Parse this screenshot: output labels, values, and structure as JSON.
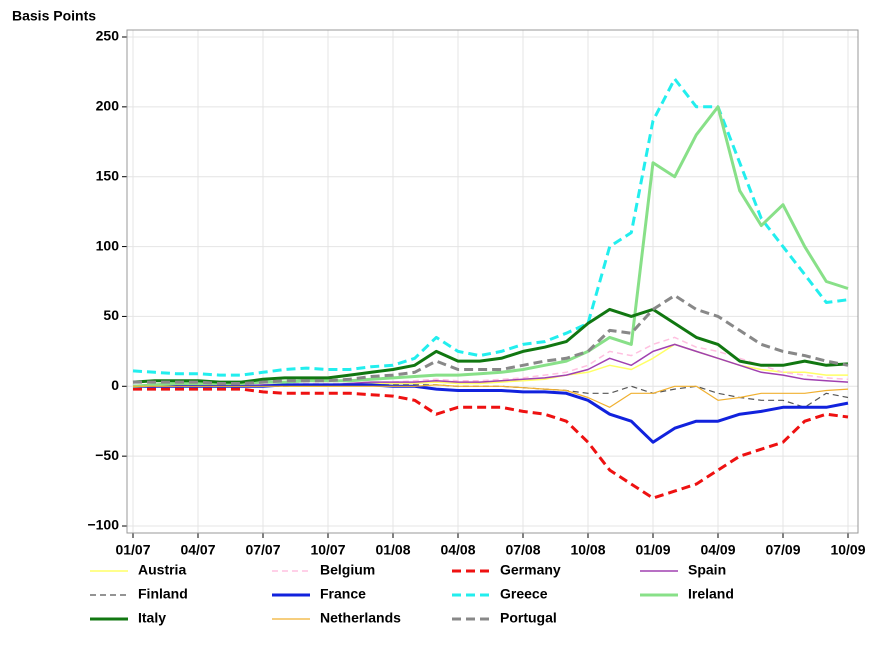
{
  "chart_data": {
    "type": "line",
    "y_label": "Basis Points",
    "categories": [
      "01/07",
      null,
      null,
      "04/07",
      null,
      null,
      "07/07",
      null,
      null,
      "10/07",
      null,
      null,
      "01/08",
      null,
      null,
      "04/08",
      null,
      null,
      "07/08",
      null,
      null,
      "10/08",
      null,
      null,
      "01/09",
      null,
      null,
      "04/09",
      null,
      null,
      "07/09",
      null,
      null,
      "10/09"
    ],
    "ylim": [
      -105,
      255
    ],
    "yticks": [
      {
        "value": -100,
        "label": "−100"
      },
      {
        "value": -50,
        "label": "−50"
      },
      0,
      50,
      100,
      150,
      200,
      250
    ],
    "grid": true,
    "legend": "bottom",
    "series": [
      {
        "name": "Austria",
        "color": "#ffff66",
        "dashed": false,
        "width": 1.5,
        "values": [
          0,
          0,
          0,
          0,
          0,
          0,
          0,
          0,
          0,
          0,
          1,
          2,
          2,
          2,
          3,
          2,
          2,
          3,
          4,
          5,
          8,
          10,
          15,
          12,
          20,
          30,
          25,
          20,
          15,
          12,
          10,
          10,
          8,
          8
        ]
      },
      {
        "name": "Belgium",
        "color": "#ffc0e0",
        "dashed": true,
        "width": 1.5,
        "values": [
          0,
          0,
          0,
          1,
          1,
          1,
          1,
          2,
          2,
          2,
          2,
          3,
          3,
          4,
          5,
          4,
          4,
          5,
          6,
          8,
          10,
          15,
          25,
          22,
          30,
          35,
          28,
          25,
          20,
          15,
          10,
          8,
          6,
          5
        ]
      },
      {
        "name": "Germany",
        "color": "#ee1111",
        "dashed": true,
        "width": 3,
        "values": [
          -2,
          -2,
          -2,
          -2,
          -2,
          -2,
          -4,
          -5,
          -5,
          -5,
          -5,
          -6,
          -7,
          -10,
          -20,
          -15,
          -15,
          -15,
          -18,
          -20,
          -25,
          -40,
          -60,
          -70,
          -80,
          -75,
          -70,
          -60,
          -50,
          -45,
          -40,
          -25,
          -20,
          -22
        ]
      },
      {
        "name": "Spain",
        "color": "#a040b0",
        "dashed": false,
        "width": 1.5,
        "values": [
          0,
          0,
          0,
          0,
          0,
          0,
          1,
          1,
          1,
          1,
          2,
          3,
          3,
          3,
          4,
          3,
          3,
          4,
          5,
          6,
          8,
          12,
          20,
          15,
          25,
          30,
          25,
          20,
          15,
          10,
          8,
          5,
          4,
          3
        ]
      },
      {
        "name": "Finland",
        "color": "#555555",
        "dashed": true,
        "width": 1.2,
        "values": [
          0,
          0,
          0,
          0,
          0,
          0,
          0,
          0,
          1,
          1,
          1,
          1,
          1,
          1,
          1,
          0,
          0,
          0,
          -1,
          -2,
          -3,
          -5,
          -5,
          0,
          -5,
          -2,
          0,
          -5,
          -8,
          -10,
          -10,
          -15,
          -5,
          -8
        ]
      },
      {
        "name": "France",
        "color": "#1122dd",
        "dashed": false,
        "width": 3,
        "values": [
          0,
          0,
          0,
          0,
          0,
          0,
          0,
          1,
          1,
          1,
          1,
          1,
          0,
          0,
          -2,
          -3,
          -3,
          -3,
          -4,
          -4,
          -5,
          -10,
          -20,
          -25,
          -40,
          -30,
          -25,
          -25,
          -20,
          -18,
          -15,
          -15,
          -15,
          -12
        ]
      },
      {
        "name": "Greece",
        "color": "#22eeee",
        "dashed": true,
        "width": 3,
        "values": [
          11,
          10,
          9,
          9,
          8,
          8,
          10,
          12,
          13,
          12,
          12,
          14,
          15,
          20,
          35,
          25,
          22,
          25,
          30,
          32,
          38,
          45,
          100,
          110,
          190,
          220,
          200,
          200,
          160,
          120,
          100,
          80,
          60,
          62
        ]
      },
      {
        "name": "Ireland",
        "color": "#88e088",
        "dashed": false,
        "width": 3,
        "values": [
          0,
          1,
          2,
          2,
          2,
          2,
          3,
          3,
          4,
          4,
          4,
          5,
          6,
          7,
          8,
          8,
          9,
          10,
          12,
          15,
          18,
          25,
          35,
          30,
          160,
          150,
          180,
          200,
          140,
          115,
          130,
          100,
          75,
          70
        ]
      },
      {
        "name": "Italy",
        "color": "#117711",
        "dashed": false,
        "width": 3,
        "values": [
          3,
          4,
          4,
          4,
          3,
          3,
          5,
          6,
          6,
          6,
          8,
          10,
          12,
          15,
          25,
          18,
          18,
          20,
          25,
          28,
          32,
          45,
          55,
          50,
          55,
          45,
          35,
          30,
          18,
          15,
          15,
          18,
          15,
          16
        ]
      },
      {
        "name": "Netherlands",
        "color": "#f0b030",
        "dashed": false,
        "width": 1.2,
        "values": [
          0,
          0,
          0,
          0,
          0,
          0,
          0,
          0,
          0,
          0,
          0,
          0,
          0,
          0,
          1,
          0,
          0,
          0,
          -1,
          -2,
          -3,
          -8,
          -15,
          -5,
          -5,
          0,
          0,
          -10,
          -8,
          -5,
          -5,
          -5,
          -3,
          -2
        ]
      },
      {
        "name": "Portugal",
        "color": "#888888",
        "dashed": true,
        "width": 3,
        "values": [
          3,
          3,
          3,
          3,
          2,
          2,
          3,
          4,
          4,
          4,
          5,
          7,
          8,
          10,
          18,
          12,
          12,
          12,
          15,
          18,
          20,
          25,
          40,
          38,
          55,
          65,
          55,
          50,
          40,
          30,
          25,
          22,
          18,
          15
        ]
      }
    ]
  }
}
